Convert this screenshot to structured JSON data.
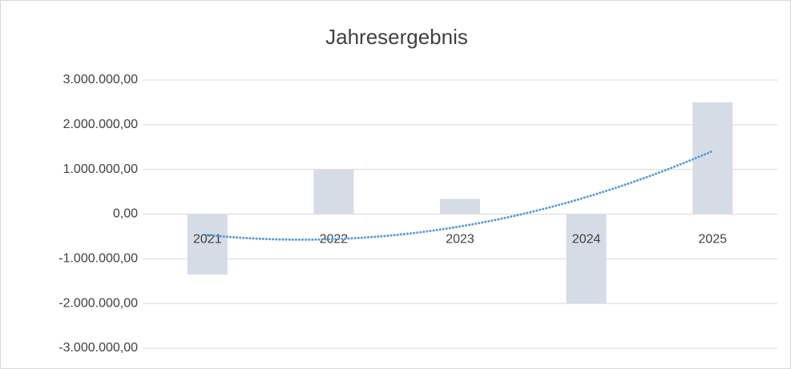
{
  "chart_data": {
    "type": "bar",
    "title": "Jahresergebnis",
    "categories": [
      "2021",
      "2022",
      "2023",
      "2024",
      "2025"
    ],
    "values": [
      -1350000,
      1000000,
      340000,
      -2000000,
      2500000
    ],
    "color": "#d6dce5",
    "ylim": [
      -3000000,
      3000000
    ],
    "yticks": [
      {
        "value": -3000000,
        "label": "-3.000.000,00"
      },
      {
        "value": -2000000,
        "label": "-2.000.000,00"
      },
      {
        "value": -1000000,
        "label": "-1.000.000,00"
      },
      {
        "value": 0,
        "label": "0,00"
      },
      {
        "value": 1000000,
        "label": "1.000.000,00"
      },
      {
        "value": 2000000,
        "label": "2.000.000,00"
      },
      {
        "value": 3000000,
        "label": "3.000.000,00"
      }
    ],
    "grid": true,
    "trendline": {
      "type": "polynomial",
      "order": 2,
      "color": "#5b9bd5"
    }
  }
}
